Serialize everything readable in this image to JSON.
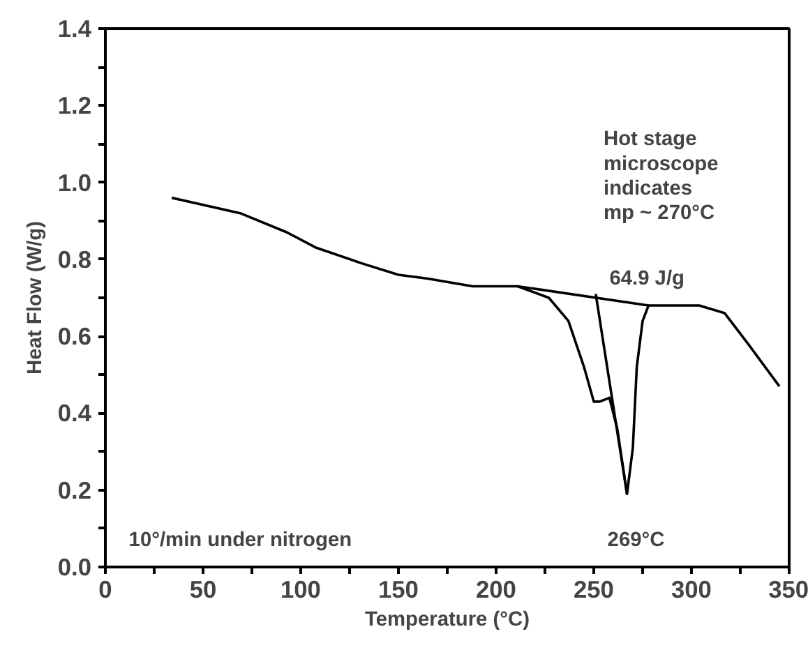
{
  "chart_data": {
    "type": "line",
    "xlabel": "Temperature (°C)",
    "ylabel": "Heat Flow (W/g)",
    "xlim": [
      0,
      350
    ],
    "ylim": [
      0,
      1.4
    ],
    "xticks": [
      0,
      {
        "value": 25,
        "label": null
      },
      50,
      {
        "value": 75,
        "label": null
      },
      100,
      {
        "value": 125,
        "label": null
      },
      150,
      {
        "value": 175,
        "label": null
      },
      200,
      {
        "value": 225,
        "label": null
      },
      250,
      {
        "value": 275,
        "label": null
      },
      300,
      {
        "value": 325,
        "label": null
      },
      350
    ],
    "yticks": [
      {
        "value": 0,
        "label": "0.0"
      },
      {
        "value": 0.1,
        "label": null
      },
      {
        "value": 0.2,
        "label": "0.2"
      },
      {
        "value": 0.3,
        "label": null
      },
      {
        "value": 0.4,
        "label": "0.4"
      },
      {
        "value": 0.5,
        "label": null
      },
      {
        "value": 0.6,
        "label": "0.6"
      },
      {
        "value": 0.7,
        "label": null
      },
      {
        "value": 0.8,
        "label": "0.8"
      },
      {
        "value": 0.9,
        "label": null
      },
      {
        "value": 1.0,
        "label": "1.0"
      },
      {
        "value": 1.1,
        "label": null
      },
      {
        "value": 1.2,
        "label": "1.2"
      },
      {
        "value": 1.3,
        "label": null
      },
      {
        "value": 1.4,
        "label": "1.4"
      }
    ],
    "grid": false,
    "marker": "none",
    "line_style": "solid",
    "series": [
      {
        "color": "#000000",
        "x": [
          34,
          69,
          93,
          108,
          131,
          150,
          165,
          188,
          211,
          227,
          237,
          245,
          250,
          253,
          258,
          262,
          267,
          270,
          272,
          275,
          278,
          287,
          304,
          317,
          329,
          345
        ],
        "values": [
          0.96,
          0.92,
          0.87,
          0.83,
          0.79,
          0.76,
          0.75,
          0.73,
          0.73,
          0.7,
          0.64,
          0.52,
          0.43,
          0.43,
          0.44,
          0.36,
          0.19,
          0.31,
          0.52,
          0.64,
          0.68,
          0.68,
          0.68,
          0.66,
          0.58,
          0.47
        ]
      },
      {
        "color": "#000000",
        "x": [
          211,
          278
        ],
        "values": [
          0.73,
          0.68
        ]
      },
      {
        "color": "#000000",
        "x": [
          251,
          267
        ],
        "values": [
          0.71,
          0.19
        ]
      }
    ],
    "annotations": [
      "Hot stage\nmicroscope\nindicates\nmp ~ 270°C",
      "64.9 J/g",
      "269°C",
      "10°/min under nitrogen"
    ]
  }
}
